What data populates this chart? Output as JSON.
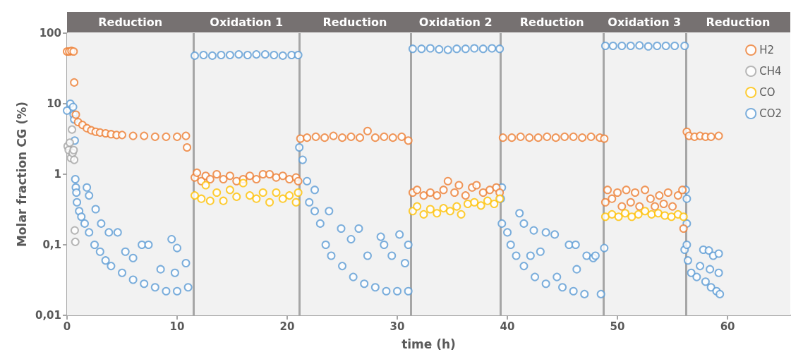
{
  "chart_data": {
    "type": "scatter",
    "xlabel": "time (h)",
    "ylabel": "Molar fraction CG (%)",
    "xlim": [
      0,
      65.7
    ],
    "xticks": [
      0,
      10,
      20,
      30,
      40,
      50,
      60
    ],
    "ylim": [
      0.01,
      100
    ],
    "yticks": [
      {
        "value": 0.01,
        "label": "0,01"
      },
      {
        "value": 0.1,
        "label": "0,1"
      },
      1,
      10,
      100
    ],
    "log": "y",
    "legend": "top right",
    "marker": "circle",
    "bands": [
      {
        "axis": "x",
        "from": 0,
        "to": 11.5,
        "label": "Reduction",
        "color": "#f2f2f2"
      },
      {
        "axis": "x",
        "from": 11.5,
        "to": 21.1,
        "label": "Oxidation 1",
        "color": "#f2f2f2"
      },
      {
        "axis": "x",
        "from": 21.1,
        "to": 31.2,
        "label": "Reduction",
        "color": "#f2f2f2"
      },
      {
        "axis": "x",
        "from": 31.2,
        "to": 39.4,
        "label": "Oxidation 2",
        "color": "#f2f2f2"
      },
      {
        "axis": "x",
        "from": 39.4,
        "to": 48.7,
        "label": "Reduction",
        "color": "#f2f2f2"
      },
      {
        "axis": "x",
        "from": 48.7,
        "to": 56.2,
        "label": "Oxidation 3",
        "color": "#f2f2f2"
      },
      {
        "axis": "x",
        "from": 56.2,
        "to": 65.7,
        "label": "Reduction",
        "color": "#f2f2f2"
      }
    ],
    "ref_lines": [
      {
        "axis": "x",
        "value": 11.5,
        "color": "#a6a6a6"
      },
      {
        "axis": "x",
        "value": 21.1,
        "color": "#a6a6a6"
      },
      {
        "axis": "x",
        "value": 31.2,
        "color": "#a6a6a6"
      },
      {
        "axis": "x",
        "value": 39.4,
        "color": "#a6a6a6"
      },
      {
        "axis": "x",
        "value": 48.7,
        "color": "#a6a6a6"
      },
      {
        "axis": "x",
        "value": 56.2,
        "color": "#a6a6a6"
      }
    ],
    "series": [
      {
        "name": "H2",
        "color": "#ed7d31",
        "x": [
          0,
          0.2,
          0.4,
          0.6,
          0.65,
          0.8,
          1.0,
          1.4,
          1.8,
          2.2,
          2.6,
          3,
          3.5,
          4,
          4.5,
          5,
          6,
          7,
          8,
          9,
          10,
          10.8,
          10.9,
          11.6,
          11.8,
          12.2,
          12.6,
          13,
          13.6,
          14.2,
          14.8,
          15.4,
          16,
          16.6,
          17.2,
          17.8,
          18.4,
          19,
          19.6,
          20.2,
          20.8,
          21,
          21.2,
          21.8,
          22.6,
          23.4,
          24.2,
          25,
          25.8,
          26.6,
          27.3,
          28,
          28.8,
          29.6,
          30.4,
          31,
          31.4,
          31.8,
          32.4,
          33,
          33.6,
          34.2,
          34.6,
          35.2,
          35.6,
          36.2,
          36.8,
          37.2,
          37.8,
          38.4,
          39,
          39.3,
          39.6,
          40.4,
          41.2,
          42,
          42.8,
          43.6,
          44.4,
          45.2,
          46,
          46.8,
          47.6,
          48.4,
          48.8,
          48.9,
          49.1,
          49.5,
          50,
          50.4,
          50.8,
          51.2,
          51.6,
          52,
          52.5,
          53,
          53.4,
          53.8,
          54.2,
          54.6,
          55,
          55.5,
          55.9,
          56.0,
          56.3,
          56.5,
          57,
          57.5,
          58,
          58.5,
          59.2
        ],
        "values": [
          55,
          55,
          56,
          55,
          20,
          7,
          5.5,
          5,
          4.5,
          4.2,
          4,
          3.9,
          3.8,
          3.7,
          3.6,
          3.6,
          3.5,
          3.5,
          3.4,
          3.4,
          3.4,
          3.5,
          2.4,
          0.9,
          1.05,
          0.8,
          0.95,
          0.85,
          1.0,
          0.85,
          0.95,
          0.8,
          0.85,
          0.95,
          0.85,
          1.0,
          1.0,
          0.9,
          0.95,
          0.85,
          0.9,
          0.8,
          3.2,
          3.3,
          3.4,
          3.3,
          3.5,
          3.3,
          3.4,
          3.3,
          4.1,
          3.3,
          3.4,
          3.3,
          3.4,
          3.0,
          0.55,
          0.6,
          0.5,
          0.55,
          0.5,
          0.6,
          0.8,
          0.55,
          0.7,
          0.5,
          0.65,
          0.7,
          0.55,
          0.6,
          0.65,
          0.55,
          3.3,
          3.3,
          3.4,
          3.3,
          3.3,
          3.4,
          3.3,
          3.4,
          3.4,
          3.3,
          3.4,
          3.3,
          3.2,
          0.4,
          0.6,
          0.45,
          0.55,
          0.35,
          0.6,
          0.4,
          0.55,
          0.35,
          0.6,
          0.45,
          0.35,
          0.5,
          0.38,
          0.55,
          0.35,
          0.5,
          0.6,
          0.17,
          4.0,
          3.5,
          3.4,
          3.5,
          3.4,
          3.4,
          3.5
        ]
      },
      {
        "name": "CH4",
        "color": "#a5a5a5",
        "x": [
          0.05,
          0.15,
          0.25,
          0.35,
          0.45,
          0.5,
          0.6,
          0.65,
          0.7,
          0.75
        ],
        "values": [
          2.5,
          2.2,
          2.8,
          1.7,
          4.3,
          2.0,
          2.2,
          1.6,
          0.16,
          0.11
        ]
      },
      {
        "name": "CO",
        "color": "#ffc000",
        "x": [
          11.6,
          12.2,
          12.6,
          13,
          13.6,
          14.2,
          14.8,
          15.4,
          16,
          16.6,
          17.2,
          17.8,
          18.4,
          19,
          19.6,
          20.2,
          20.8,
          21,
          31.4,
          31.8,
          32.4,
          33,
          33.6,
          34.2,
          34.8,
          35.4,
          35.8,
          36.4,
          37,
          37.6,
          38.2,
          38.8,
          39.3,
          48.9,
          49.5,
          50.1,
          50.7,
          51.3,
          51.9,
          52.5,
          53.1,
          53.7,
          54.3,
          54.9,
          55.5,
          56.0
        ],
        "values": [
          0.5,
          0.45,
          0.7,
          0.42,
          0.55,
          0.42,
          0.6,
          0.48,
          0.75,
          0.5,
          0.45,
          0.55,
          0.4,
          0.55,
          0.45,
          0.5,
          0.4,
          0.55,
          0.3,
          0.35,
          0.27,
          0.32,
          0.28,
          0.33,
          0.3,
          0.35,
          0.27,
          0.38,
          0.4,
          0.36,
          0.42,
          0.38,
          0.45,
          0.25,
          0.27,
          0.25,
          0.28,
          0.25,
          0.27,
          0.3,
          0.27,
          0.28,
          0.26,
          0.25,
          0.27,
          0.25
        ]
      },
      {
        "name": "CO2",
        "color": "#5b9bd5",
        "x": [
          0,
          0.3,
          0.55,
          0.6,
          0.65,
          0.7,
          0.75,
          0.8,
          0.85,
          0.9,
          1.1,
          1.3,
          1.6,
          1.8,
          2.0,
          2.0,
          2.5,
          2.6,
          3,
          3.1,
          3.5,
          3.8,
          4,
          4.6,
          5,
          5.3,
          6,
          6,
          6.8,
          7,
          7.4,
          8,
          8.5,
          9,
          9.5,
          9.8,
          10,
          10,
          10.8,
          11,
          11.6,
          12.4,
          13.2,
          14,
          14.8,
          15.6,
          16.4,
          17.2,
          18,
          18.8,
          19.6,
          20.4,
          21.0,
          21.1,
          21.4,
          21.8,
          22,
          22.5,
          22.5,
          23,
          23.5,
          23.8,
          24,
          24.9,
          25,
          25.8,
          26,
          26.5,
          27,
          27.3,
          28,
          28.5,
          28.8,
          29,
          29.5,
          30,
          30.2,
          30.7,
          31,
          31,
          31.4,
          32.2,
          33,
          33.8,
          34.6,
          35.4,
          36.2,
          37,
          37.8,
          38.6,
          39.3,
          39.4,
          39.5,
          39.5,
          40,
          40.3,
          40.8,
          41.1,
          41.5,
          41.5,
          42.1,
          42.4,
          42.5,
          43,
          43.5,
          43.5,
          44.3,
          44.5,
          45,
          45.6,
          46,
          46.2,
          46.3,
          47,
          47.2,
          47.8,
          48,
          48.5,
          48.8,
          48.9,
          49.6,
          50.4,
          51.2,
          52,
          52.8,
          53.6,
          54.4,
          55.2,
          56.1,
          56.1,
          56.2,
          56.3,
          56.3,
          56.3,
          56.4,
          56.7,
          57.2,
          57.5,
          57.8,
          58,
          58.3,
          58.4,
          58.5,
          58.7,
          59,
          59.2,
          59.2,
          59.3
        ],
        "values": [
          8,
          10,
          9,
          7,
          6,
          3,
          0.85,
          0.65,
          0.55,
          0.4,
          0.3,
          0.25,
          0.2,
          0.65,
          0.5,
          0.15,
          0.1,
          0.32,
          0.08,
          0.2,
          0.06,
          0.15,
          0.05,
          0.15,
          0.04,
          0.08,
          0.065,
          0.032,
          0.1,
          0.028,
          0.1,
          0.025,
          0.045,
          0.022,
          0.12,
          0.04,
          0.09,
          0.022,
          0.055,
          0.025,
          48,
          49,
          48,
          49,
          49,
          50,
          49,
          50,
          50,
          49,
          48,
          49,
          49,
          2.4,
          1.6,
          0.8,
          0.4,
          0.6,
          0.3,
          0.2,
          0.1,
          0.3,
          0.07,
          0.17,
          0.05,
          0.12,
          0.035,
          0.17,
          0.028,
          0.07,
          0.025,
          0.13,
          0.1,
          0.022,
          0.07,
          0.022,
          0.14,
          0.055,
          0.1,
          0.022,
          60,
          60,
          61,
          59,
          58,
          60,
          60,
          61,
          60,
          61,
          60,
          0.45,
          0.65,
          0.2,
          0.15,
          0.1,
          0.07,
          0.28,
          0.05,
          0.2,
          0.07,
          0.16,
          0.035,
          0.08,
          0.15,
          0.028,
          0.14,
          0.035,
          0.025,
          0.1,
          0.022,
          0.1,
          0.045,
          0.02,
          0.07,
          0.065,
          0.07,
          0.02,
          0.09,
          66,
          66,
          66,
          66,
          67,
          65,
          66,
          66,
          66,
          66,
          0.085,
          0.6,
          0.45,
          0.2,
          0.1,
          0.06,
          0.04,
          0.035,
          0.05,
          0.085,
          0.03,
          0.083,
          0.045,
          0.025,
          0.07,
          0.022,
          0.075,
          0.04,
          0.02
        ]
      }
    ]
  }
}
